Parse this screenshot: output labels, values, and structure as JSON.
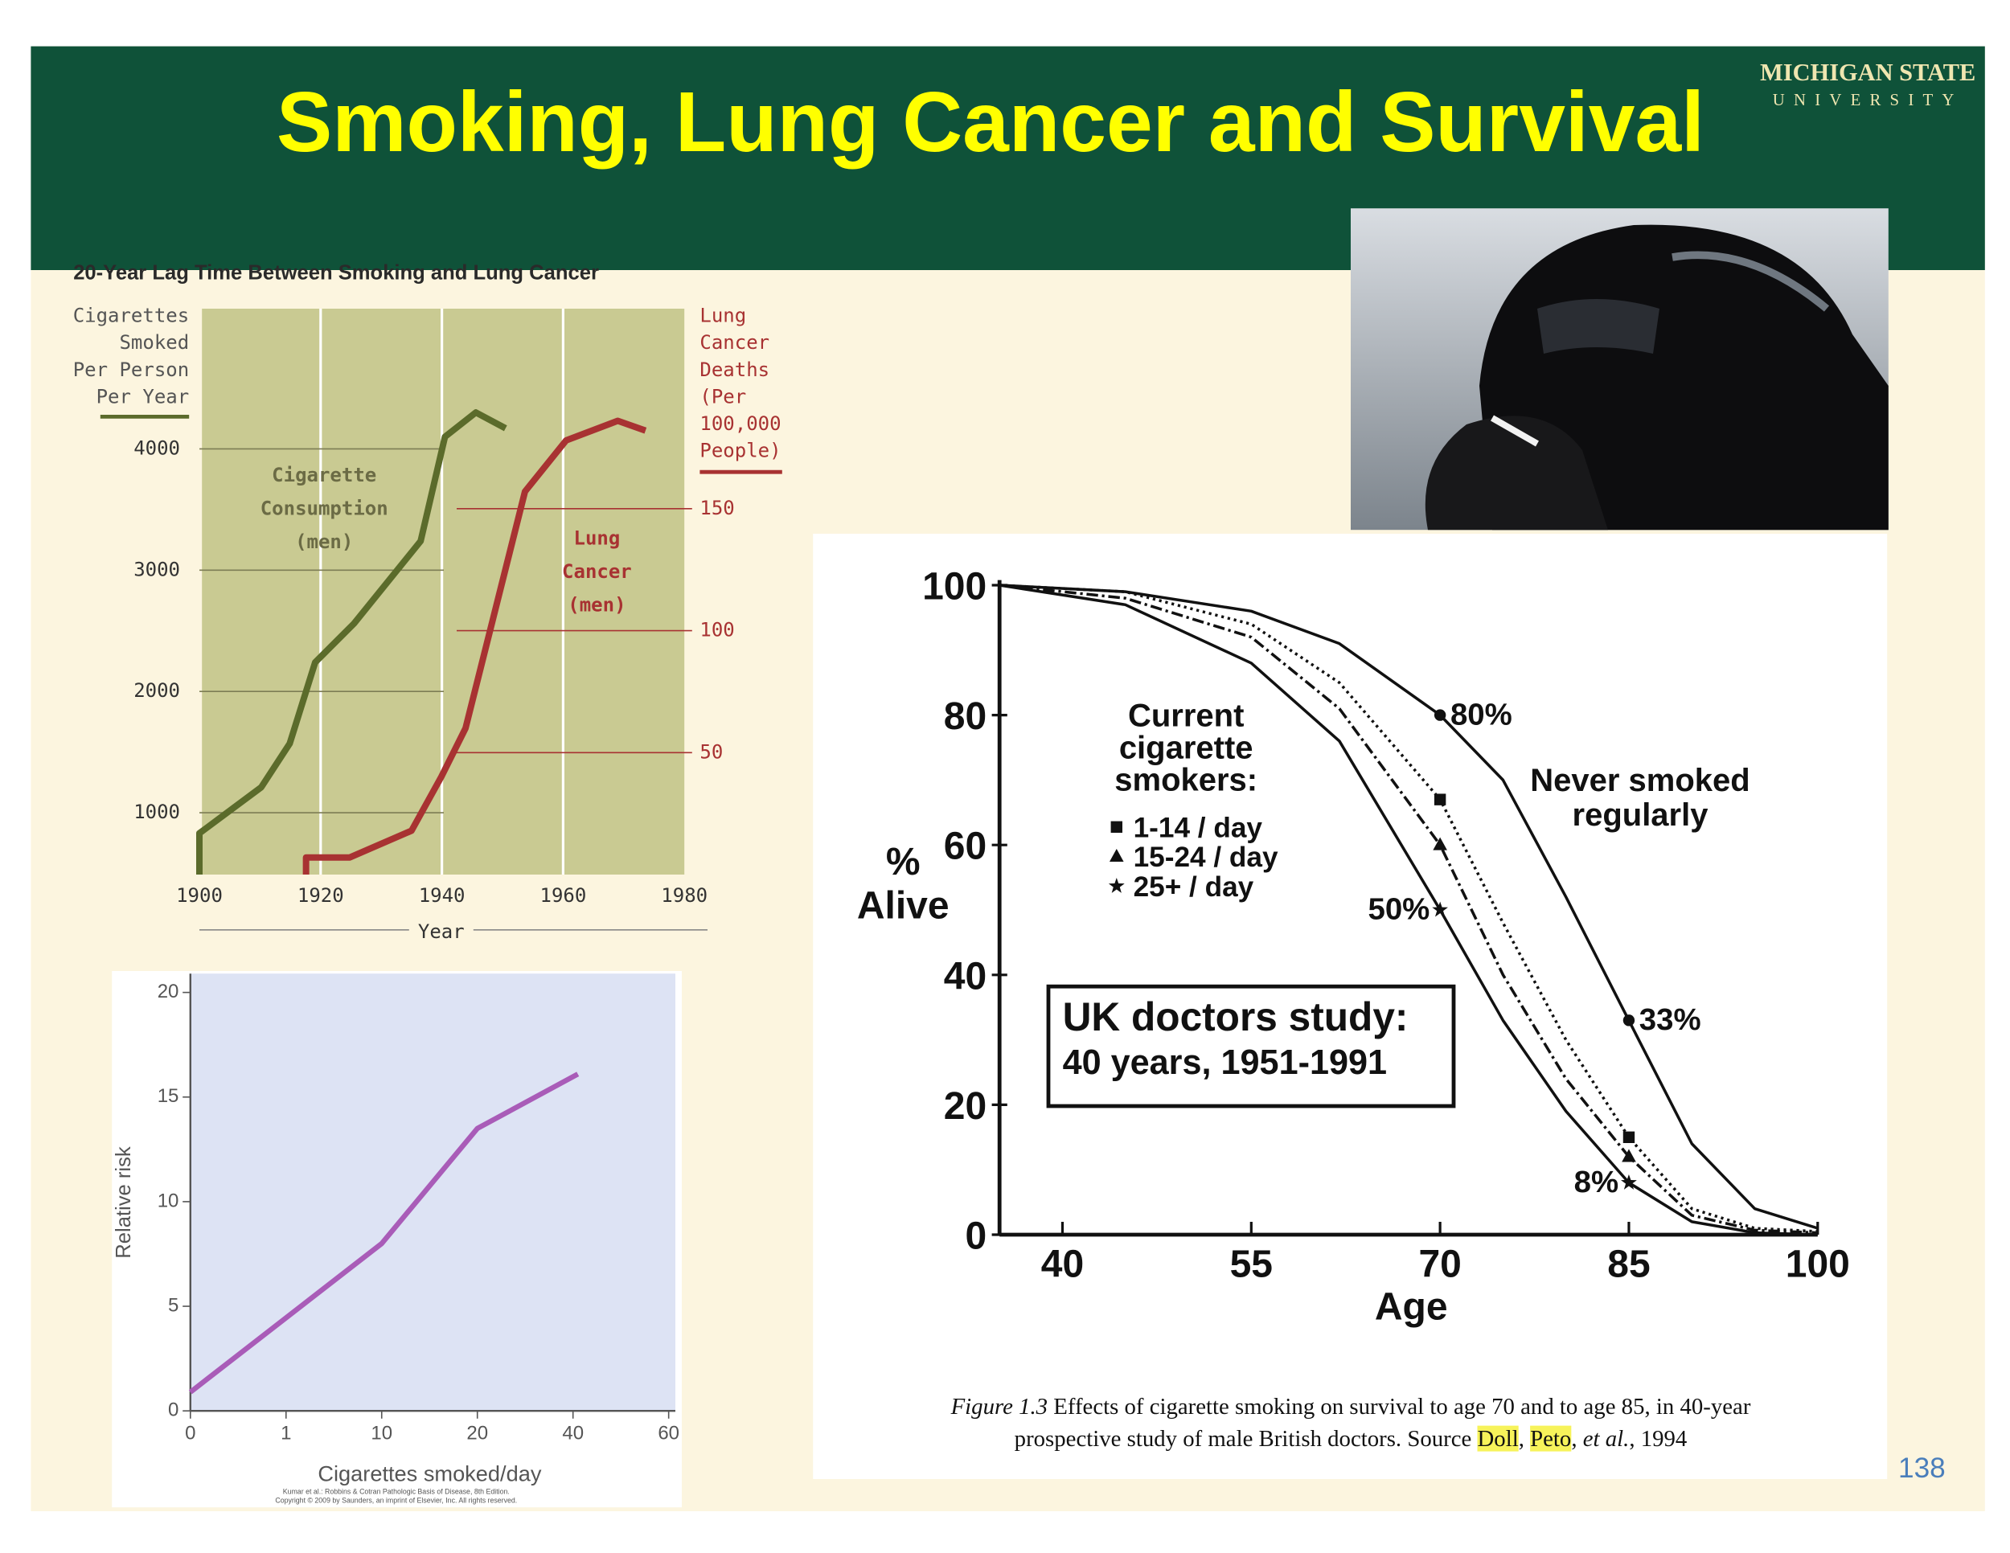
{
  "slide": {
    "title": "Smoking, Lung Cancer and Survival",
    "logo": [
      "MICHIGAN STATE",
      "UNIVERSITY"
    ],
    "page_number": "138"
  },
  "chart_data": [
    {
      "type": "line",
      "title": "20-Year Lag Time Between Smoking and Lung Cancer",
      "xlabel": "Year",
      "ylabel": [
        "Cigarettes",
        "Smoked",
        "Per Person",
        "Per Year"
      ],
      "y2label": [
        "Lung",
        "Cancer",
        "Deaths",
        "(Per",
        "100,000",
        "People)"
      ],
      "xlim": [
        1900,
        1980
      ],
      "xticks": [
        1900,
        1920,
        1940,
        1960,
        1980
      ],
      "ylim": [
        490,
        5156
      ],
      "yticks": [
        1000,
        2000,
        3000,
        4000
      ],
      "y2lim": [
        0,
        232
      ],
      "y2ticks": [
        50,
        100,
        150
      ],
      "series": [
        {
          "label": [
            "Cigarette",
            "Consumption",
            "(men)"
          ],
          "color": "#5b6b2b",
          "x": [
            1900,
            1900,
            1910.2,
            1914.9,
            1919.1,
            1925.5,
            1936.5,
            1940.5,
            1945.6,
            1950.5
          ],
          "values": [
            490,
            830,
            1210,
            1570,
            2240,
            2560,
            3240,
            4100,
            4300,
            4170
          ]
        },
        {
          "label": [
            "Lung",
            "Cancer",
            "(men)"
          ],
          "color": "#a83232",
          "axis": "y2",
          "x": [
            1917.6,
            1917.6,
            1924.8,
            1935,
            1939.9,
            1943.9,
            1953.7,
            1960.5,
            1969,
            1973.6
          ],
          "values": [
            0,
            7,
            7,
            18,
            40,
            60,
            157,
            178,
            186,
            182
          ]
        }
      ]
    },
    {
      "type": "line",
      "ylabel": "Relative risk",
      "xlabel": "Cigarettes smoked/day",
      "source": [
        "Kumar et al.: Robbins & Cotran Pathologic Basis of Disease, 8th Edition.",
        "Copyright © 2009 by Saunders, an imprint of Elsevier, Inc. All rights reserved."
      ],
      "xlim": [
        0,
        5.07
      ],
      "xticks": [
        0,
        1,
        {
          "value": 2,
          "label": "10"
        },
        {
          "value": 3,
          "label": "20"
        },
        {
          "value": 4,
          "label": "40"
        },
        {
          "value": 5,
          "label": "60"
        }
      ],
      "ylim": [
        0,
        20.9
      ],
      "yticks": [
        0,
        5,
        10,
        15,
        20
      ],
      "x": [
        0,
        2,
        3,
        4.05
      ],
      "series": [
        {
          "color": "#a95cb8",
          "values": [
            0.9,
            8,
            13.5,
            16.1
          ]
        }
      ]
    },
    {
      "type": "line",
      "xlabel": "Age",
      "ylabel": [
        "%",
        "Alive"
      ],
      "xlim": [
        35,
        100
      ],
      "xticks": [
        40,
        55,
        70,
        85,
        100
      ],
      "ylim": [
        0,
        100
      ],
      "yticks": [
        0,
        20,
        40,
        60,
        80,
        100
      ],
      "x": [
        35,
        45,
        55,
        62,
        70,
        75,
        80,
        85,
        90,
        95,
        100
      ],
      "marked_x": [
        70,
        85
      ],
      "legend_title": [
        "Current",
        "cigarette",
        "smokers:"
      ],
      "box": [
        "UK doctors study:",
        "40 years, 1951-1991"
      ],
      "series": [
        {
          "name": "Never smoked regularly",
          "color": "#111111",
          "dash": "solid",
          "marker": "circle",
          "values": [
            100,
            99,
            96,
            91,
            80,
            70,
            52,
            33,
            14,
            4,
            1
          ]
        },
        {
          "name": "1-14 / day",
          "color": "#111111",
          "dash": "dotted",
          "marker": "square",
          "values": [
            100,
            99,
            94,
            85,
            67,
            48,
            30,
            15,
            4,
            1,
            0.5
          ]
        },
        {
          "name": "15-24 / day",
          "color": "#111111",
          "dash": "dashdot",
          "marker": "triangle",
          "values": [
            100,
            98,
            92,
            81,
            60,
            40,
            24,
            12,
            3,
            0.7,
            0.3
          ]
        },
        {
          "name": "25+ / day",
          "color": "#111111",
          "dash": "solid",
          "marker": "star",
          "values": [
            100,
            97,
            88,
            76,
            50,
            33,
            19,
            8,
            2,
            0.3,
            0
          ]
        }
      ],
      "annotations": [
        {
          "text": "80%",
          "x": 70,
          "y": 80,
          "side": "right"
        },
        {
          "text": "33%",
          "x": 85,
          "y": 33,
          "side": "right"
        },
        {
          "text": "50%",
          "x": 70,
          "y": 50,
          "side": "left"
        },
        {
          "text": "8%",
          "x": 85,
          "y": 8,
          "side": "left"
        }
      ],
      "caption": [
        [
          {
            "text": "Figure 1.3",
            "italic": true
          },
          {
            "text": " Effects of cigarette smoking on survival to age 70 and to age 85, in 40-year"
          }
        ],
        [
          {
            "text": "prospective study of male British doctors. Source "
          },
          {
            "text": "Doll",
            "highlight": true
          },
          {
            "text": ", "
          },
          {
            "text": "Peto",
            "highlight": true
          },
          {
            "text": ", "
          },
          {
            "text": "et al.",
            "italic": true
          },
          {
            "text": ", 1994"
          }
        ]
      ]
    }
  ]
}
